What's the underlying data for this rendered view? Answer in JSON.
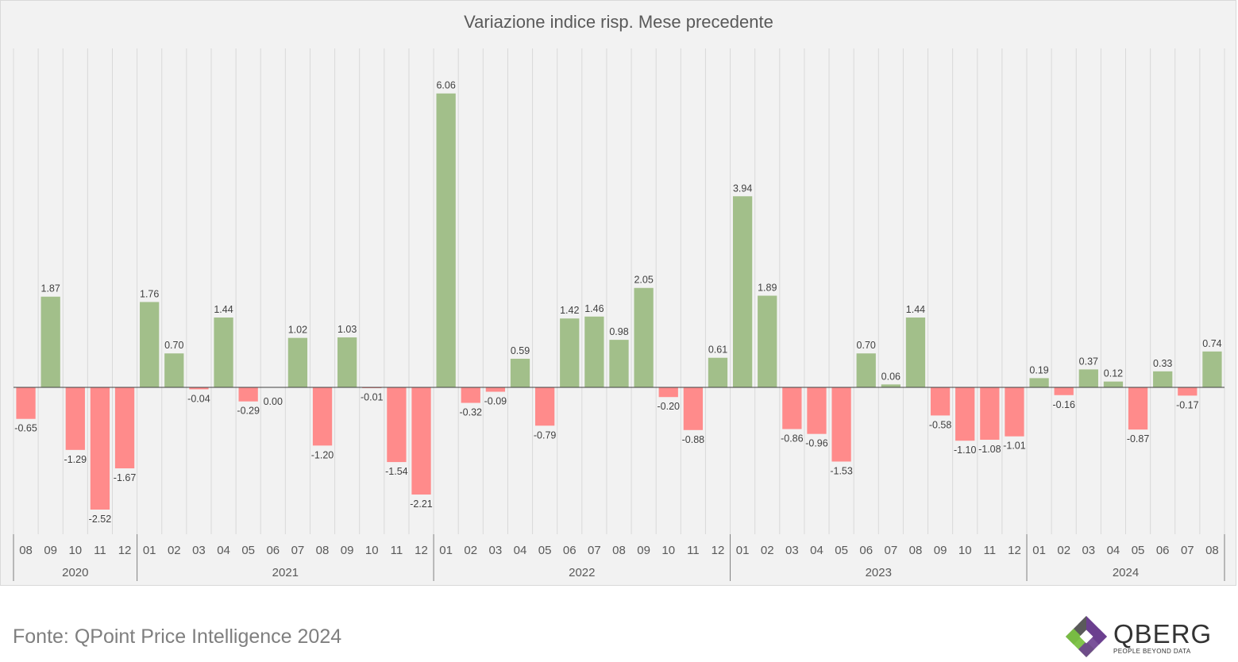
{
  "chart_data": {
    "type": "bar",
    "title": "Variazione indice risp. Mese precedente",
    "xlabel": "",
    "ylabel": "",
    "ylim": [
      -3.0,
      6.8
    ],
    "grid": "vertical",
    "legend": "none",
    "colors": {
      "positive": "#a2bf8a",
      "negative": "#ff8b8b",
      "zero_line": "#404040",
      "grid": "#d9d9d9"
    },
    "categories": [
      "08",
      "09",
      "10",
      "11",
      "12",
      "01",
      "02",
      "03",
      "04",
      "05",
      "06",
      "07",
      "08",
      "09",
      "10",
      "11",
      "12",
      "01",
      "02",
      "03",
      "04",
      "05",
      "06",
      "07",
      "08",
      "09",
      "10",
      "11",
      "12",
      "01",
      "02",
      "03",
      "04",
      "05",
      "06",
      "07",
      "08",
      "09",
      "10",
      "11",
      "12",
      "01",
      "02",
      "03",
      "04",
      "05",
      "06",
      "07",
      "08"
    ],
    "years": [
      {
        "label": "2020",
        "start": 0,
        "count": 5
      },
      {
        "label": "2021",
        "start": 5,
        "count": 12
      },
      {
        "label": "2022",
        "start": 17,
        "count": 12
      },
      {
        "label": "2023",
        "start": 29,
        "count": 12
      },
      {
        "label": "2024",
        "start": 41,
        "count": 8
      }
    ],
    "values": [
      -0.65,
      1.87,
      -1.29,
      -2.52,
      -1.67,
      1.76,
      0.7,
      -0.04,
      1.44,
      -0.29,
      0.0,
      1.02,
      -1.2,
      1.03,
      -0.01,
      -1.54,
      -2.21,
      6.06,
      -0.32,
      -0.09,
      0.59,
      -0.79,
      1.42,
      1.46,
      0.98,
      2.05,
      -0.2,
      -0.88,
      0.61,
      3.94,
      1.89,
      -0.86,
      -0.96,
      -1.53,
      0.7,
      0.06,
      1.44,
      -0.58,
      -1.1,
      -1.08,
      -1.01,
      0.19,
      -0.16,
      0.37,
      0.12,
      -0.87,
      0.33,
      -0.17,
      0.74
    ],
    "data_labels": [
      "-0.65",
      "1.87",
      "-1.29",
      "-2.52",
      "-1.67",
      "1.76",
      "0.70",
      "-0.04",
      "1.44",
      "-0.29",
      "0.00",
      "1.02",
      "-1.20",
      "1.03",
      "-0.01",
      "-1.54",
      "-2.21",
      "6.06",
      "-0.32",
      "-0.09",
      "0.59",
      "-0.79",
      "1.42",
      "1.46",
      "0.98",
      "2.05",
      "-0.20",
      "-0.88",
      "0.61",
      "3.94",
      "1.89",
      "-0.86",
      "-0.96",
      "-1.53",
      "0.70",
      "0.06",
      "1.44",
      "-0.58",
      "-1.10",
      "-1.08",
      "-1.01",
      "0.19",
      "-0.16",
      "0.37",
      "0.12",
      "-0.87",
      "0.33",
      "-0.17",
      "0.74"
    ]
  },
  "footer": {
    "source": "Fonte: QPoint Price Intelligence 2024"
  },
  "logo": {
    "name": "QBERG",
    "tagline": "PEOPLE BEYOND DATA"
  }
}
